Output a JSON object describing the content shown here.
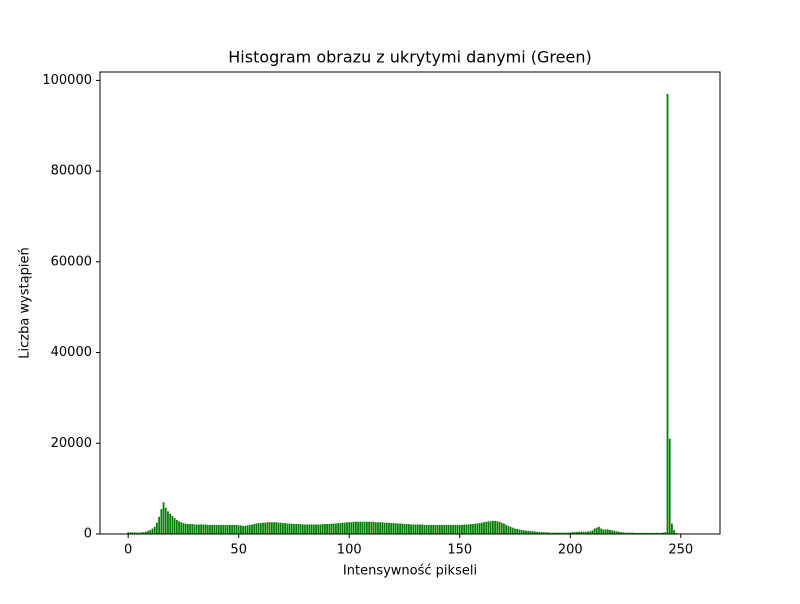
{
  "chart_data": {
    "type": "bar",
    "title": "Histogram obrazu z ukrytymi danymi (Green)",
    "xlabel": "Intensywność pikseli",
    "ylabel": "Liczba wystąpień",
    "color": "#008000",
    "x": [
      0,
      1,
      2,
      3,
      4,
      5,
      6,
      7,
      8,
      9,
      10,
      11,
      12,
      13,
      14,
      15,
      16,
      17,
      18,
      19,
      20,
      21,
      22,
      23,
      24,
      25,
      26,
      27,
      28,
      29,
      30,
      31,
      32,
      33,
      34,
      35,
      36,
      37,
      38,
      39,
      40,
      41,
      42,
      43,
      44,
      45,
      46,
      47,
      48,
      49,
      50,
      51,
      52,
      53,
      54,
      55,
      56,
      57,
      58,
      59,
      60,
      61,
      62,
      63,
      64,
      65,
      66,
      67,
      68,
      69,
      70,
      71,
      72,
      73,
      74,
      75,
      76,
      77,
      78,
      79,
      80,
      81,
      82,
      83,
      84,
      85,
      86,
      87,
      88,
      89,
      90,
      91,
      92,
      93,
      94,
      95,
      96,
      97,
      98,
      99,
      100,
      101,
      102,
      103,
      104,
      105,
      106,
      107,
      108,
      109,
      110,
      111,
      112,
      113,
      114,
      115,
      116,
      117,
      118,
      119,
      120,
      121,
      122,
      123,
      124,
      125,
      126,
      127,
      128,
      129,
      130,
      131,
      132,
      133,
      134,
      135,
      136,
      137,
      138,
      139,
      140,
      141,
      142,
      143,
      144,
      145,
      146,
      147,
      148,
      149,
      150,
      151,
      152,
      153,
      154,
      155,
      156,
      157,
      158,
      159,
      160,
      161,
      162,
      163,
      164,
      165,
      166,
      167,
      168,
      169,
      170,
      171,
      172,
      173,
      174,
      175,
      176,
      177,
      178,
      179,
      180,
      181,
      182,
      183,
      184,
      185,
      186,
      187,
      188,
      189,
      190,
      191,
      192,
      193,
      194,
      195,
      196,
      197,
      198,
      199,
      200,
      201,
      202,
      203,
      204,
      205,
      206,
      207,
      208,
      209,
      210,
      211,
      212,
      213,
      214,
      215,
      216,
      217,
      218,
      219,
      220,
      221,
      222,
      223,
      224,
      225,
      226,
      227,
      228,
      229,
      230,
      231,
      232,
      233,
      234,
      235,
      236,
      237,
      238,
      239,
      240,
      241,
      242,
      243,
      244,
      245,
      246,
      247,
      248,
      249,
      250,
      251,
      252,
      253,
      254,
      255
    ],
    "values": [
      400,
      350,
      350,
      350,
      300,
      300,
      350,
      400,
      500,
      700,
      900,
      1200,
      1600,
      2500,
      3800,
      5500,
      7000,
      5800,
      5000,
      4500,
      4000,
      3500,
      3100,
      2800,
      2600,
      2400,
      2300,
      2200,
      2200,
      2200,
      2100,
      2100,
      2100,
      2100,
      2100,
      2100,
      2000,
      2000,
      2000,
      2000,
      2000,
      2000,
      2000,
      2000,
      2000,
      2000,
      2000,
      2000,
      2000,
      2000,
      1900,
      1900,
      1800,
      1800,
      1900,
      2000,
      2100,
      2200,
      2300,
      2400,
      2400,
      2500,
      2500,
      2600,
      2600,
      2600,
      2600,
      2600,
      2500,
      2500,
      2400,
      2400,
      2300,
      2300,
      2300,
      2200,
      2200,
      2200,
      2200,
      2100,
      2100,
      2100,
      2100,
      2100,
      2100,
      2100,
      2100,
      2100,
      2200,
      2200,
      2200,
      2200,
      2300,
      2300,
      2300,
      2400,
      2400,
      2500,
      2500,
      2600,
      2600,
      2600,
      2700,
      2700,
      2700,
      2700,
      2700,
      2700,
      2700,
      2700,
      2700,
      2700,
      2600,
      2600,
      2600,
      2600,
      2500,
      2500,
      2500,
      2400,
      2400,
      2400,
      2300,
      2300,
      2300,
      2200,
      2200,
      2200,
      2100,
      2100,
      2100,
      2100,
      2100,
      2100,
      2000,
      2000,
      2000,
      2000,
      2000,
      2000,
      2000,
      2000,
      2000,
      2000,
      2000,
      2000,
      2000,
      2000,
      2000,
      2000,
      2000,
      2000,
      2100,
      2100,
      2100,
      2200,
      2200,
      2300,
      2300,
      2400,
      2500,
      2600,
      2700,
      2800,
      2800,
      2900,
      2900,
      2800,
      2700,
      2500,
      2300,
      2000,
      1800,
      1600,
      1400,
      1200,
      1100,
      1000,
      900,
      800,
      750,
      700,
      650,
      600,
      550,
      500,
      450,
      400,
      400,
      350,
      350,
      300,
      300,
      300,
      300,
      300,
      300,
      300,
      300,
      300,
      350,
      400,
      450,
      450,
      500,
      500,
      500,
      500,
      550,
      600,
      800,
      1200,
      1400,
      1600,
      1200,
      1000,
      1000,
      1000,
      900,
      800,
      700,
      600,
      500,
      400,
      350,
      300,
      300,
      300,
      300,
      250,
      250,
      250,
      250,
      250,
      250,
      250,
      250,
      250,
      250,
      250,
      250,
      250,
      300,
      400,
      97000,
      21000,
      2300,
      900,
      200,
      0,
      0,
      0,
      0,
      0,
      0,
      0
    ],
    "xlim": [
      -12.75,
      267.75
    ],
    "ylim": [
      0,
      101850
    ],
    "xticks": [
      0,
      50,
      100,
      150,
      200,
      250
    ],
    "yticks": [
      0,
      20000,
      40000,
      60000,
      80000,
      100000
    ]
  }
}
